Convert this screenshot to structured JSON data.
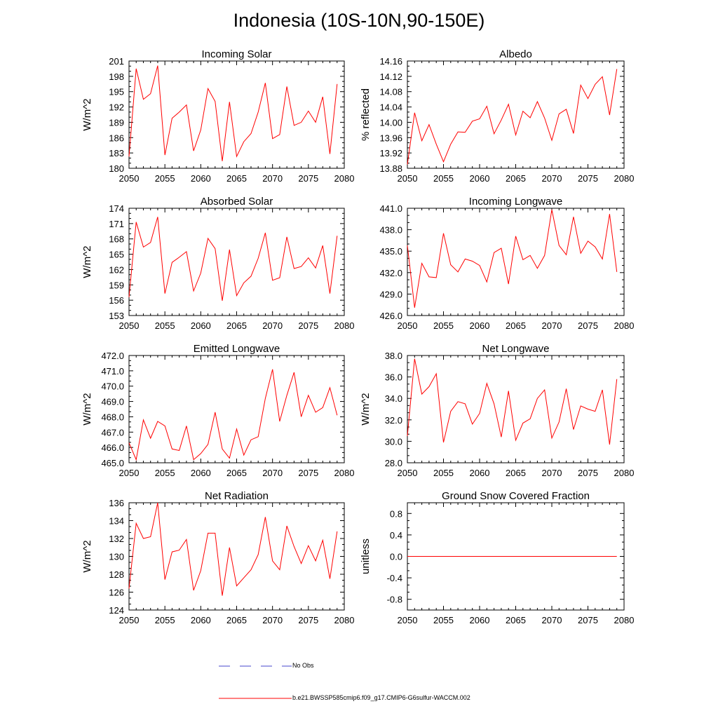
{
  "figure": {
    "title": "Indonesia (10S-10N,90-150E)"
  },
  "legend": {
    "items": [
      {
        "label": "No Obs",
        "color": "#4444cc",
        "style": "dashed"
      },
      {
        "label": "b.e21.BWSSP585cmip6.f09_g17.CMIP6-G6sulfur-WACCM.002",
        "color": "#ff0000",
        "style": "solid"
      }
    ]
  },
  "chart_data": [
    {
      "type": "line",
      "title": "Incoming Solar",
      "ylabel": "W/m^2",
      "xlim": [
        2050,
        2080
      ],
      "ylim": [
        180,
        201
      ],
      "xticks": [
        2050,
        2055,
        2060,
        2065,
        2070,
        2075,
        2080
      ],
      "yticks": [
        "180",
        "183",
        "186",
        "189",
        "192",
        "195",
        "198",
        "201"
      ],
      "color": "#ff0000",
      "x": [
        2050,
        2051,
        2052,
        2053,
        2054,
        2055,
        2056,
        2057,
        2058,
        2059,
        2060,
        2061,
        2062,
        2063,
        2064,
        2065,
        2066,
        2067,
        2068,
        2069,
        2070,
        2071,
        2072,
        2073,
        2074,
        2075,
        2076,
        2077,
        2078,
        2079
      ],
      "values": [
        182.3,
        199.5,
        193.5,
        194.6,
        200.1,
        182.6,
        189.8,
        191.0,
        192.4,
        183.4,
        187.5,
        195.6,
        193.1,
        181.4,
        193.0,
        182.3,
        185.2,
        186.8,
        191.0,
        196.7,
        185.8,
        186.6,
        196.0,
        188.4,
        189.0,
        191.2,
        189.0,
        194.0,
        182.8,
        196.5
      ]
    },
    {
      "type": "line",
      "title": "Albedo",
      "ylabel": "% reflected",
      "xlim": [
        2050,
        2080
      ],
      "ylim": [
        13.88,
        14.16
      ],
      "xticks": [
        2050,
        2055,
        2060,
        2065,
        2070,
        2075,
        2080
      ],
      "yticks": [
        "13.88",
        "13.92",
        "13.96",
        "14.00",
        "14.04",
        "14.08",
        "14.12",
        "14.16"
      ],
      "color": "#ff0000",
      "x": [
        2050,
        2051,
        2052,
        2053,
        2054,
        2055,
        2056,
        2057,
        2058,
        2059,
        2060,
        2061,
        2062,
        2063,
        2064,
        2065,
        2066,
        2067,
        2068,
        2069,
        2070,
        2071,
        2072,
        2073,
        2074,
        2075,
        2076,
        2077,
        2078,
        2079
      ],
      "values": [
        13.89,
        14.025,
        13.952,
        13.994,
        13.943,
        13.897,
        13.943,
        13.975,
        13.974,
        14.003,
        14.009,
        14.042,
        13.97,
        14.006,
        14.047,
        13.967,
        14.029,
        14.012,
        14.054,
        14.011,
        13.953,
        14.022,
        14.034,
        13.971,
        14.097,
        14.062,
        14.099,
        14.119,
        14.019,
        14.139
      ]
    },
    {
      "type": "line",
      "title": "Absorbed Solar",
      "ylabel": "W/m^2",
      "xlim": [
        2050,
        2080
      ],
      "ylim": [
        153,
        174
      ],
      "xticks": [
        2050,
        2055,
        2060,
        2065,
        2070,
        2075,
        2080
      ],
      "yticks": [
        "153",
        "156",
        "159",
        "162",
        "165",
        "168",
        "171",
        "174"
      ],
      "color": "#ff0000",
      "x": [
        2050,
        2051,
        2052,
        2053,
        2054,
        2055,
        2056,
        2057,
        2058,
        2059,
        2060,
        2061,
        2062,
        2063,
        2064,
        2065,
        2066,
        2067,
        2068,
        2069,
        2070,
        2071,
        2072,
        2073,
        2074,
        2075,
        2076,
        2077,
        2078,
        2079
      ],
      "values": [
        156.6,
        171.3,
        166.4,
        167.3,
        172.3,
        157.3,
        163.4,
        164.4,
        165.5,
        157.8,
        161.3,
        168.1,
        166.1,
        155.9,
        165.9,
        156.9,
        159.4,
        160.7,
        164.2,
        169.2,
        159.9,
        160.4,
        168.4,
        162.2,
        162.6,
        164.3,
        162.3,
        166.7,
        157.3,
        168.6
      ]
    },
    {
      "type": "line",
      "title": "Incoming Longwave",
      "ylabel": "",
      "xlim": [
        2050,
        2080
      ],
      "ylim": [
        426.0,
        441.0
      ],
      "xticks": [
        2050,
        2055,
        2060,
        2065,
        2070,
        2075,
        2080
      ],
      "yticks": [
        "426.0",
        "429.0",
        "432.0",
        "435.0",
        "438.0",
        "441.0"
      ],
      "color": "#ff0000",
      "x": [
        2050,
        2051,
        2052,
        2053,
        2054,
        2055,
        2056,
        2057,
        2058,
        2059,
        2060,
        2061,
        2062,
        2063,
        2064,
        2065,
        2066,
        2067,
        2068,
        2069,
        2070,
        2071,
        2072,
        2073,
        2074,
        2075,
        2076,
        2077,
        2078,
        2079
      ],
      "values": [
        435.8,
        427.1,
        433.3,
        431.4,
        431.3,
        437.5,
        433.1,
        432.1,
        433.9,
        433.6,
        433.0,
        430.7,
        434.8,
        435.4,
        430.4,
        437.1,
        433.8,
        434.4,
        432.6,
        434.4,
        440.8,
        435.8,
        434.5,
        439.8,
        434.7,
        436.4,
        435.6,
        433.9,
        440.2,
        432.1
      ]
    },
    {
      "type": "line",
      "title": "Emitted Longwave",
      "ylabel": "W/m^2",
      "xlim": [
        2050,
        2080
      ],
      "ylim": [
        465.0,
        472.0
      ],
      "xticks": [
        2050,
        2055,
        2060,
        2065,
        2070,
        2075,
        2080
      ],
      "yticks": [
        "465.0",
        "466.0",
        "467.0",
        "468.0",
        "469.0",
        "470.0",
        "471.0",
        "472.0"
      ],
      "color": "#ff0000",
      "x": [
        2050,
        2051,
        2052,
        2053,
        2054,
        2055,
        2056,
        2057,
        2058,
        2059,
        2060,
        2061,
        2062,
        2063,
        2064,
        2065,
        2066,
        2067,
        2068,
        2069,
        2070,
        2071,
        2072,
        2073,
        2074,
        2075,
        2076,
        2077,
        2078,
        2079
      ],
      "values": [
        466.3,
        465.2,
        467.8,
        466.6,
        467.7,
        467.4,
        465.9,
        465.8,
        467.4,
        465.2,
        465.6,
        466.2,
        468.3,
        465.9,
        465.3,
        467.2,
        465.5,
        466.5,
        466.7,
        469.2,
        471.1,
        467.7,
        469.4,
        470.9,
        468.0,
        469.4,
        468.3,
        468.6,
        469.9,
        468.1
      ]
    },
    {
      "type": "line",
      "title": "Net Longwave",
      "ylabel": "W/m^2",
      "xlim": [
        2050,
        2080
      ],
      "ylim": [
        28.0,
        38.0
      ],
      "xticks": [
        2050,
        2055,
        2060,
        2065,
        2070,
        2075,
        2080
      ],
      "yticks": [
        "28.0",
        "30.0",
        "32.0",
        "34.0",
        "36.0",
        "38.0"
      ],
      "color": "#ff0000",
      "x": [
        2050,
        2051,
        2052,
        2053,
        2054,
        2055,
        2056,
        2057,
        2058,
        2059,
        2060,
        2061,
        2062,
        2063,
        2064,
        2065,
        2066,
        2067,
        2068,
        2069,
        2070,
        2071,
        2072,
        2073,
        2074,
        2075,
        2076,
        2077,
        2078,
        2079
      ],
      "values": [
        30.5,
        37.7,
        34.4,
        35.1,
        36.3,
        29.9,
        32.8,
        33.7,
        33.5,
        31.6,
        32.6,
        35.4,
        33.5,
        30.4,
        34.7,
        30.1,
        31.7,
        32.1,
        34.0,
        34.8,
        30.3,
        31.8,
        34.9,
        31.1,
        33.3,
        33.0,
        32.8,
        34.8,
        29.7,
        35.8
      ]
    },
    {
      "type": "line",
      "title": "Net Radiation",
      "ylabel": "W/m^2",
      "xlim": [
        2050,
        2080
      ],
      "ylim": [
        124,
        136
      ],
      "xticks": [
        2050,
        2055,
        2060,
        2065,
        2070,
        2075,
        2080
      ],
      "yticks": [
        "124",
        "126",
        "128",
        "130",
        "132",
        "134",
        "136"
      ],
      "color": "#ff0000",
      "x": [
        2050,
        2051,
        2052,
        2053,
        2054,
        2055,
        2056,
        2057,
        2058,
        2059,
        2060,
        2061,
        2062,
        2063,
        2064,
        2065,
        2066,
        2067,
        2068,
        2069,
        2070,
        2071,
        2072,
        2073,
        2074,
        2075,
        2076,
        2077,
        2078,
        2079
      ],
      "values": [
        126.4,
        133.7,
        132.0,
        132.2,
        136.0,
        127.4,
        130.5,
        130.7,
        131.9,
        126.2,
        128.4,
        132.6,
        132.6,
        125.6,
        131.0,
        126.7,
        127.6,
        128.5,
        130.2,
        134.4,
        129.5,
        128.5,
        133.4,
        131.1,
        129.2,
        131.2,
        129.5,
        131.8,
        127.5,
        132.8
      ]
    },
    {
      "type": "line",
      "title": "Ground Snow Covered Fraction",
      "ylabel": "unitless",
      "xlim": [
        2050,
        2080
      ],
      "ylim": [
        -1.0,
        1.0
      ],
      "xticks": [
        2050,
        2055,
        2060,
        2065,
        2070,
        2075,
        2080
      ],
      "yticks": [
        "-0.8",
        "-0.4",
        "0.0",
        "0.4",
        "0.8"
      ],
      "color": "#ff0000",
      "x": [
        2050,
        2079
      ],
      "values": [
        0.0,
        0.0
      ]
    }
  ]
}
